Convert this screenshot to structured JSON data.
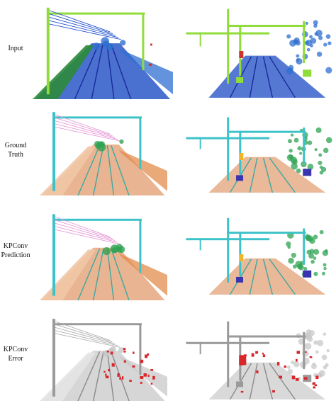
{
  "rows": [
    {
      "label": "Input",
      "style": "input"
    },
    {
      "label": "Ground\nTruth",
      "style": "truth"
    },
    {
      "label": "KPConv\nPrediction",
      "style": "pred"
    },
    {
      "label": "KPConv\nError",
      "style": "error"
    }
  ],
  "palettes": {
    "input": {
      "ground": "#2a57c8",
      "ground2": "#2c8a3a",
      "rail": "#1a2a9a",
      "pole": "#8fdc3a",
      "wire": "#1f4fd0",
      "veg": "#2f6fd0",
      "accent": "#d23030"
    },
    "truth": {
      "ground": "#e5a77f",
      "ground2": "#f1c7a6",
      "rail": "#3ba9a0",
      "pole": "#3ec2c9",
      "wire": "#e59ad8",
      "veg": "#2fa353",
      "accent": "#f0b428",
      "device": "#3b34b0"
    },
    "pred": {
      "ground": "#e5a77f",
      "ground2": "#f1c7a6",
      "rail": "#3ba9a0",
      "pole": "#3ec2c9",
      "wire": "#e59ad8",
      "veg": "#2fa353",
      "accent": "#f0b428",
      "device": "#3b34b0"
    },
    "error": {
      "ground": "#cfcfcf",
      "ground2": "#e4e4e4",
      "rail": "#8a8a8a",
      "pole": "#9a9a9a",
      "wire": "#b0b0b0",
      "veg": "#c8c8c8",
      "accent": "#d8262b"
    }
  }
}
